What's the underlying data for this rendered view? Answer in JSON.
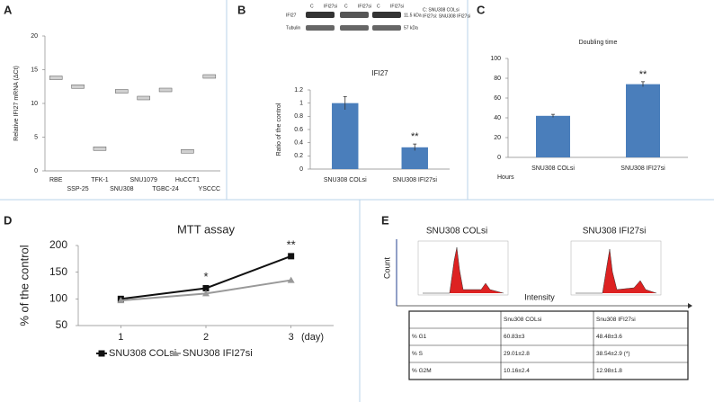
{
  "chart_data": [
    {
      "type": "marker",
      "label": "A",
      "ylabel": "Relative IFI27 mRNA (ΔCt)",
      "categories": [
        "RBE",
        "SSP-25",
        "TFK-1",
        "SNU308",
        "SNU1079",
        "TGBC-24",
        "HuCCT1",
        "YSCCC"
      ],
      "values": [
        13.8,
        12.5,
        3.3,
        11.8,
        10.8,
        12.0,
        2.9,
        14.0
      ],
      "color": "#d0d0d0",
      "ylim": [
        0,
        20
      ],
      "yticks": [
        0,
        5,
        10,
        15,
        20
      ]
    },
    {
      "type": "bar",
      "label": "B",
      "title": "IFI27",
      "ylabel": "Ratio of the control",
      "categories": [
        "SNU308 COLsi",
        "SNU308 IFI27si"
      ],
      "values": [
        1,
        0.33
      ],
      "errors": [
        0.1,
        0.05
      ],
      "color": "#4a7ebb",
      "annotation": "**",
      "ylim": [
        0,
        1.2
      ],
      "yticks": [
        0,
        0.2,
        0.4,
        0.6,
        0.8,
        1,
        1.2
      ]
    },
    {
      "type": "bar",
      "label": "C",
      "title": "Doubling time",
      "xlabel": "Hours",
      "categories": [
        "SNU308 COLsi",
        "SNU308 IFI27si"
      ],
      "values": [
        42,
        74
      ],
      "errors": [
        1.5,
        2.5
      ],
      "color": "#4a7ebb",
      "annotation": "**",
      "ylim": [
        0,
        100
      ],
      "yticks": [
        0,
        20,
        40,
        60,
        80,
        100
      ]
    },
    {
      "type": "line",
      "label": "D",
      "title": "MTT assay",
      "ylabel": "% of the control",
      "xlabel": "(day)",
      "x": [
        1,
        2,
        3
      ],
      "xlim": [
        0.5,
        3.5
      ],
      "xticks": [
        1,
        2,
        3
      ],
      "ylim": [
        50,
        200
      ],
      "yticks": [
        50,
        100,
        150,
        200
      ],
      "annotations": [
        "*",
        "**"
      ],
      "series": [
        {
          "name": "SNU308 COLsi",
          "color": "#111111",
          "marker": "square",
          "values": [
            100,
            120,
            180
          ]
        },
        {
          "name": "SNU308 IFI27si",
          "color": "#999999",
          "marker": "triangle",
          "values": [
            97,
            110,
            135
          ]
        }
      ]
    }
  ],
  "blot": {
    "lanes": [
      "C",
      "IFI27si"
    ],
    "rows": [
      "IFI27",
      "Tubulin"
    ],
    "sizes": [
      "11.5 kDa",
      "57 kDa"
    ],
    "legend": [
      "C: SNU308 COLsi",
      "IFI27si: SNU308 IFI27si"
    ]
  },
  "flow": {
    "label": "E",
    "titles": [
      "SNU308 COLsi",
      "SNU308 IFI27si"
    ],
    "ylabel": "Count",
    "xlabel": "Intensity"
  },
  "table": {
    "header": [
      "Snu308 COLsi",
      "Snu308 IFI27si"
    ],
    "rows": [
      [
        "% G1",
        "60.83±3",
        "48.48±3.6"
      ],
      [
        "% S",
        "29.01±2.8",
        "38.54±2.9 (*)"
      ],
      [
        "% G2M",
        "10.16±2.4",
        "12.98±1.8"
      ]
    ]
  }
}
